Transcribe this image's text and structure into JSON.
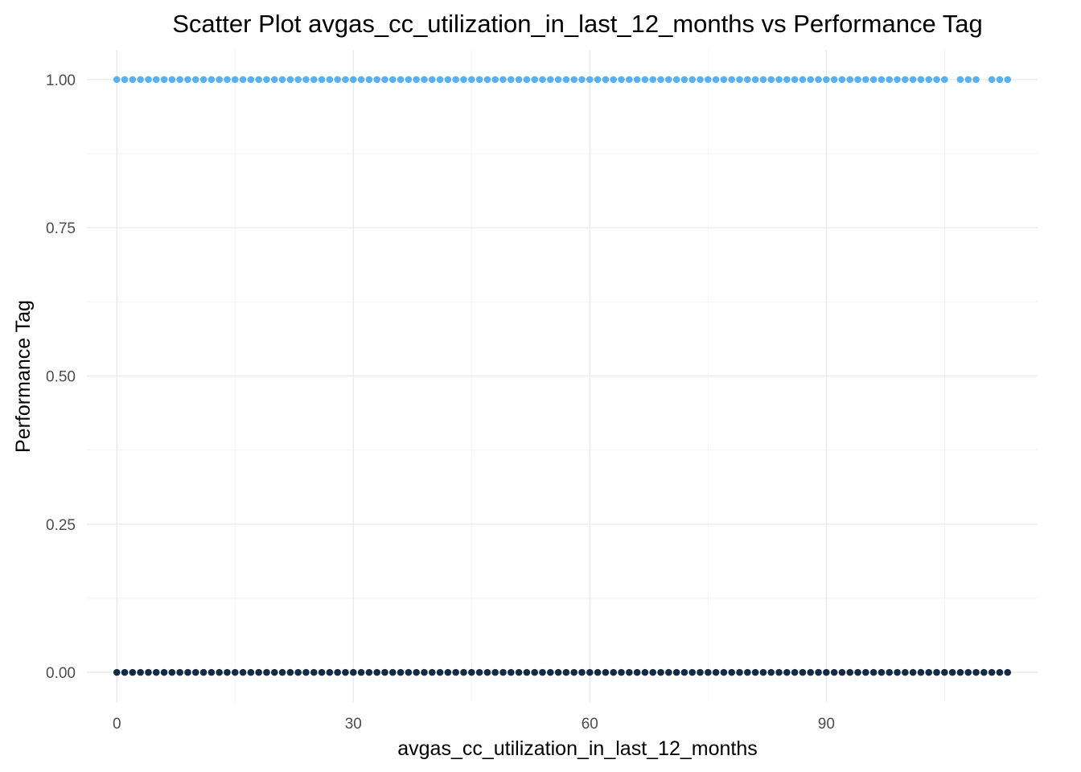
{
  "chart_data": {
    "type": "scatter",
    "title": "Scatter Plot avgas_cc_utilization_in_last_12_months vs Performance Tag",
    "xlabel": "avgas_cc_utilization_in_last_12_months",
    "ylabel": "Performance Tag",
    "xlim": [
      -3.8,
      116.8
    ],
    "ylim": [
      -0.05,
      1.05
    ],
    "x_ticks": [
      0,
      30,
      60,
      90
    ],
    "x_tick_labels": [
      "0",
      "30",
      "60",
      "90"
    ],
    "y_ticks": [
      0,
      0.25,
      0.5,
      0.75,
      1
    ],
    "y_tick_labels": [
      "0.00",
      "0.25",
      "0.50",
      "0.75",
      "1.00"
    ],
    "grid": true,
    "legend": "none",
    "series": [
      {
        "color": "#56B1F7",
        "y": 1,
        "x_ranges": [
          [
            0,
            105
          ],
          [
            107,
            109
          ],
          [
            111,
            113
          ]
        ]
      },
      {
        "color": "#132B43",
        "y": 0,
        "x_ranges": [
          [
            0,
            113
          ]
        ]
      }
    ]
  }
}
